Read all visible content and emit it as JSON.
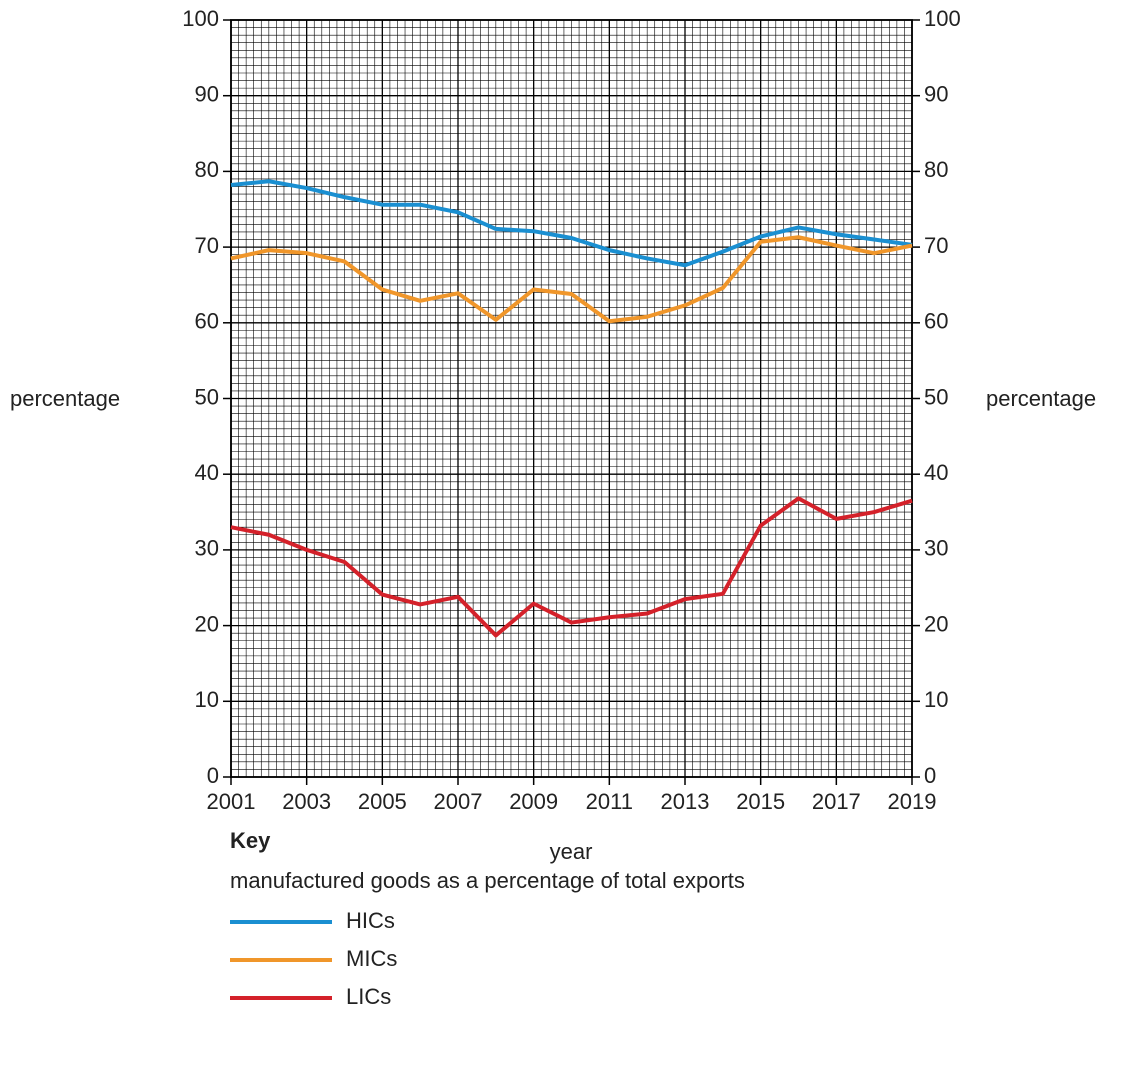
{
  "chart_data": {
    "type": "line",
    "xlabel": "year",
    "ylabel": "percentage",
    "y2label": "percentage",
    "x": [
      2001,
      2002,
      2003,
      2004,
      2005,
      2006,
      2007,
      2008,
      2009,
      2010,
      2011,
      2012,
      2013,
      2014,
      2015,
      2016,
      2017,
      2018,
      2019
    ],
    "xlim": [
      2001,
      2019
    ],
    "xticks": [
      2001,
      2003,
      2005,
      2007,
      2009,
      2011,
      2013,
      2015,
      2017,
      2019
    ],
    "ylim": [
      0,
      100
    ],
    "yticks": [
      0,
      10,
      20,
      30,
      40,
      50,
      60,
      70,
      80,
      90,
      100
    ],
    "y2lim": [
      0,
      100
    ],
    "y2ticks": [
      0,
      10,
      20,
      30,
      40,
      50,
      60,
      70,
      80,
      90,
      100
    ],
    "grid": true,
    "legend_title": "Key",
    "legend_subtitle": "manufactured goods as a percentage of total exports",
    "series": [
      {
        "name": "HICs",
        "color": "#1a8fd1",
        "values": [
          78.2,
          78.7,
          77.8,
          76.6,
          75.6,
          75.6,
          74.6,
          72.4,
          72.1,
          71.2,
          69.6,
          68.5,
          67.6,
          69.4,
          71.4,
          72.6,
          71.7,
          71.0,
          70.3
        ]
      },
      {
        "name": "MICs",
        "color": "#f0962a",
        "values": [
          68.5,
          69.6,
          69.2,
          68.1,
          64.4,
          62.9,
          63.9,
          60.4,
          64.4,
          63.8,
          60.2,
          60.8,
          62.3,
          64.6,
          70.7,
          71.3,
          70.2,
          69.2,
          70.2
        ]
      },
      {
        "name": "LICs",
        "color": "#d4212a",
        "values": [
          33.0,
          32.0,
          30.0,
          28.4,
          24.1,
          22.8,
          23.8,
          18.7,
          22.9,
          20.4,
          21.1,
          21.6,
          23.5,
          24.2,
          33.2,
          36.8,
          34.1,
          35.0,
          36.5
        ]
      }
    ]
  }
}
